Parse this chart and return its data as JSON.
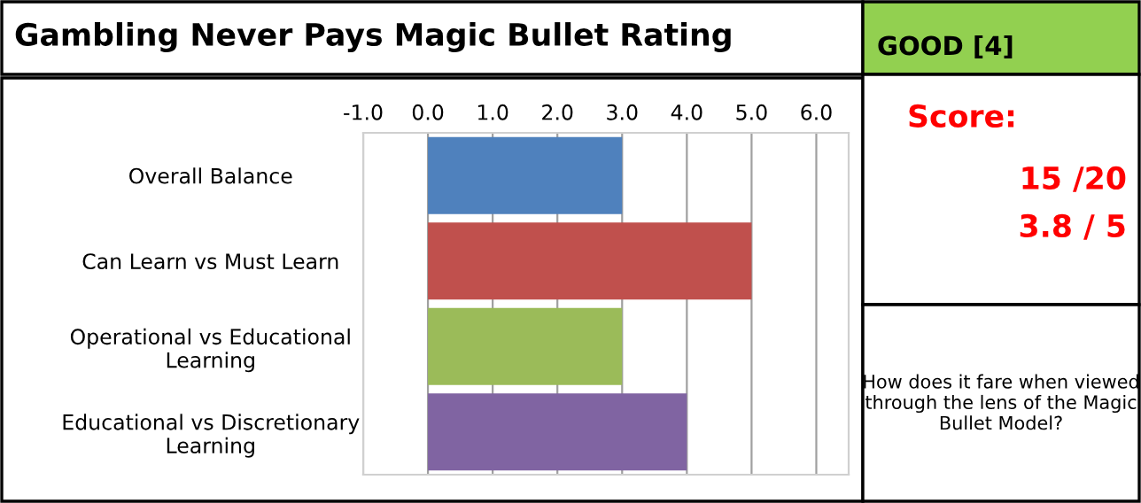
{
  "chart_data": {
    "type": "bar",
    "orientation": "horizontal",
    "title": "Gambling Never Pays Magic Bullet Rating",
    "categories": [
      "Overall Balance",
      "Can Learn vs Must Learn",
      "Operational vs Educational\nLearning",
      "Educational vs Discretionary\nLearning"
    ],
    "values": [
      3,
      5,
      3,
      4
    ],
    "colors": [
      "#4f81bd",
      "#c0504d",
      "#9bbb59",
      "#8064a2"
    ],
    "xlim": [
      -1,
      6.5
    ],
    "xticks": [
      {
        "value": -1,
        "label": "-1.0"
      },
      {
        "value": 0,
        "label": "0.0"
      },
      {
        "value": 1,
        "label": "1.0"
      },
      {
        "value": 2,
        "label": "2.0"
      },
      {
        "value": 3,
        "label": "3.0"
      },
      {
        "value": 4,
        "label": "4.0"
      },
      {
        "value": 5,
        "label": "5.0"
      },
      {
        "value": 6,
        "label": "6.0"
      }
    ],
    "grid": "x",
    "annotations": [
      "GOOD [4]",
      "Score:",
      "15 /20",
      "3.8 / 5",
      "How does it fare when viewed through the lens of the Magic Bullet Model?"
    ]
  }
}
